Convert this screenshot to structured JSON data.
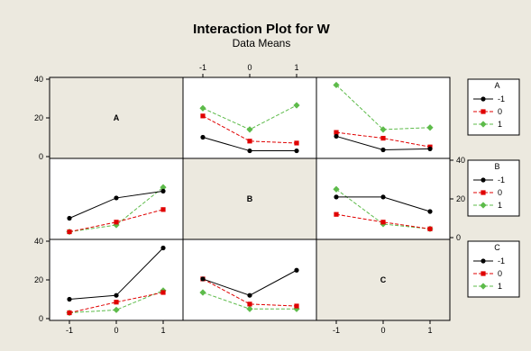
{
  "title": "Interaction Plot for W",
  "subtitle": "Data Means",
  "colors": {
    "background": "#ece9df",
    "panel": "#ffffff",
    "series_-1": "#000000",
    "series_0": "#e00000",
    "series_1": "#5dbb4a"
  },
  "chart_data": {
    "type": "line",
    "title": "Interaction Plot for W",
    "subtitle": "Data Means",
    "factors": [
      "A",
      "B",
      "C"
    ],
    "levels": [
      "-1",
      "0",
      "1"
    ],
    "ylim": [
      0,
      40
    ],
    "y_ticks": [
      "0",
      "20",
      "40"
    ],
    "grid": false,
    "legend_placement": "right",
    "series_styles": [
      {
        "level": "-1",
        "color": "#000000",
        "marker": "circle",
        "line": "solid"
      },
      {
        "level": "0",
        "color": "#e00000",
        "marker": "square",
        "line": "dashed"
      },
      {
        "level": "1",
        "color": "#5dbb4a",
        "marker": "diamond",
        "line": "dashed"
      }
    ],
    "legends": [
      {
        "factor": "A",
        "entries": [
          "-1",
          "0",
          "1"
        ]
      },
      {
        "factor": "B",
        "entries": [
          "-1",
          "0",
          "1"
        ]
      },
      {
        "factor": "C",
        "entries": [
          "-1",
          "0",
          "1"
        ]
      }
    ],
    "panels": [
      {
        "row": "A",
        "col": "B",
        "x_factor": "B",
        "trace_factor": "A",
        "x": [
          "-1",
          "0",
          "1"
        ],
        "series": [
          {
            "name": "-1",
            "values": [
              10,
              3,
              3
            ]
          },
          {
            "name": "0",
            "values": [
              21,
              8,
              7
            ]
          },
          {
            "name": "1",
            "values": [
              25,
              14,
              26.5
            ]
          }
        ]
      },
      {
        "row": "A",
        "col": "C",
        "x_factor": "C",
        "trace_factor": "A",
        "x": [
          "-1",
          "0",
          "1"
        ],
        "series": [
          {
            "name": "-1",
            "values": [
              10.5,
              3.5,
              4
            ]
          },
          {
            "name": "0",
            "values": [
              12.5,
              9.5,
              5
            ]
          },
          {
            "name": "1",
            "values": [
              37,
              14,
              15
            ]
          }
        ]
      },
      {
        "row": "B",
        "col": "A",
        "x_factor": "A",
        "trace_factor": "B",
        "x": [
          "-1",
          "0",
          "1"
        ],
        "series": [
          {
            "name": "-1",
            "values": [
              10,
              20.5,
              24
            ]
          },
          {
            "name": "0",
            "values": [
              3,
              8,
              14.5
            ]
          },
          {
            "name": "1",
            "values": [
              3,
              6.5,
              26
            ]
          }
        ]
      },
      {
        "row": "B",
        "col": "C",
        "x_factor": "C",
        "trace_factor": "B",
        "x": [
          "-1",
          "0",
          "1"
        ],
        "series": [
          {
            "name": "-1",
            "values": [
              21,
              21,
              13.5
            ]
          },
          {
            "name": "0",
            "values": [
              12,
              8,
              4.5
            ]
          },
          {
            "name": "1",
            "values": [
              25,
              7,
              4.5
            ]
          }
        ]
      },
      {
        "row": "C",
        "col": "A",
        "x_factor": "A",
        "trace_factor": "C",
        "x": [
          "-1",
          "0",
          "1"
        ],
        "series": [
          {
            "name": "-1",
            "values": [
              10,
              12,
              36.5
            ]
          },
          {
            "name": "0",
            "values": [
              3,
              8.5,
              13.5
            ]
          },
          {
            "name": "1",
            "values": [
              3,
              4.5,
              14.5
            ]
          }
        ]
      },
      {
        "row": "C",
        "col": "B",
        "x_factor": "B",
        "trace_factor": "C",
        "x": [
          "-1",
          "0",
          "1"
        ],
        "series": [
          {
            "name": "-1",
            "values": [
              20.5,
              12,
              25
            ]
          },
          {
            "name": "0",
            "values": [
              20.5,
              7.5,
              6.5
            ]
          },
          {
            "name": "1",
            "values": [
              13.5,
              5,
              5
            ]
          }
        ]
      }
    ]
  }
}
